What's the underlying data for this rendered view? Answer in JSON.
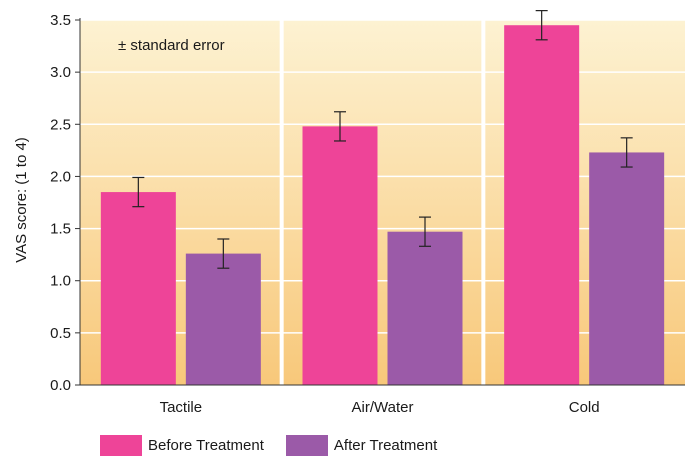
{
  "chart_data": {
    "type": "bar",
    "categories": [
      "Tactile",
      "Air/Water",
      "Cold"
    ],
    "series": [
      {
        "name": "Before Treatment",
        "values": [
          1.85,
          2.48,
          3.45
        ],
        "errors": [
          0.14,
          0.14,
          0.14
        ],
        "color": "#ee4498"
      },
      {
        "name": "After Treatment",
        "values": [
          1.26,
          1.47,
          2.23
        ],
        "errors": [
          0.14,
          0.14,
          0.14
        ],
        "color": "#9b5aa8"
      }
    ],
    "ylabel": "VAS score: (1 to 4)",
    "ylim": [
      0,
      3.5
    ],
    "yticks": [
      "0.0",
      "0.5",
      "1.0",
      "1.5",
      "2.0",
      "2.5",
      "3.0",
      "3.5"
    ],
    "annotation": "± standard error",
    "legend_position": "bottom-left",
    "background_gradient": [
      "#f8c87a",
      "#fdf2d2"
    ],
    "grid": true
  }
}
